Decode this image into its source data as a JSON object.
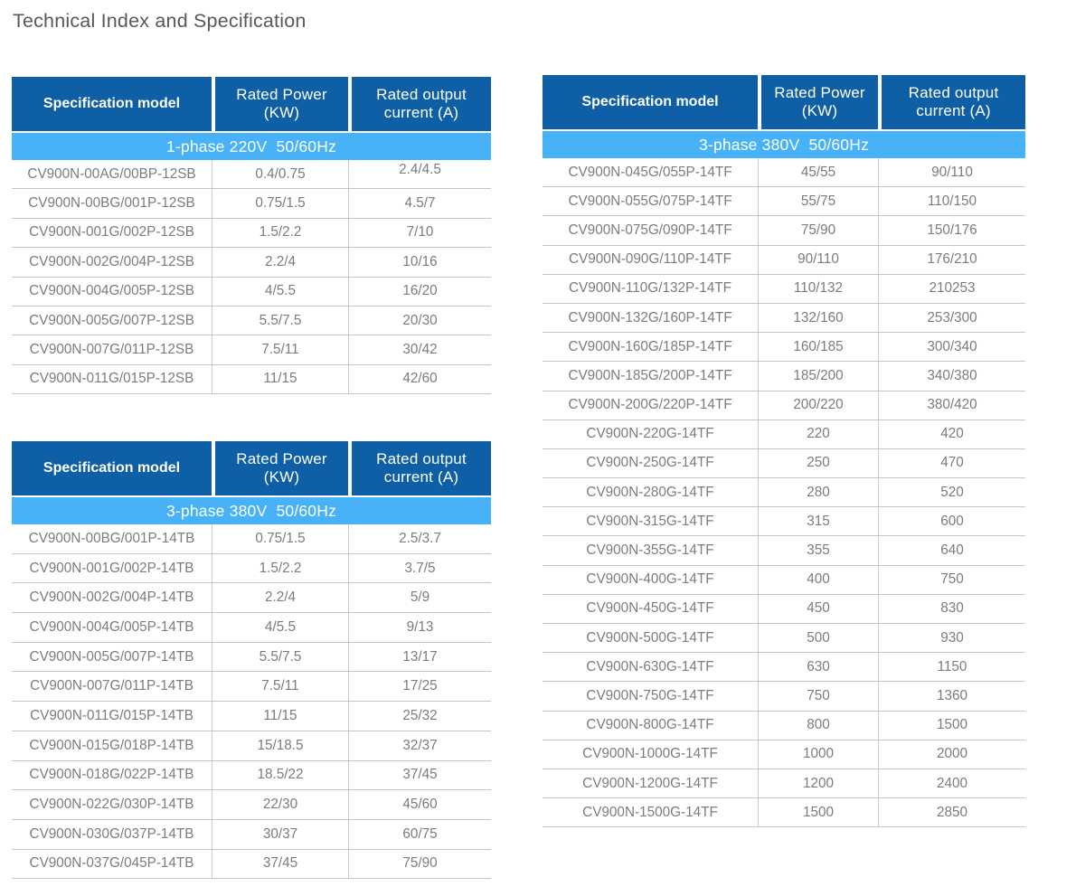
{
  "page_title": "Technical Index and Specification",
  "colors": {
    "header_bg": "#0e5fa5",
    "banner_bg": "#48b2f9",
    "header_text": "#ffffff",
    "title_text": "#58585a",
    "cell_text": "#7c7c7c",
    "row_line": "#c6c6c6",
    "column_line": "#cccccc"
  },
  "columns": [
    {
      "label": "Specification model",
      "lines": [
        "Specification model"
      ]
    },
    {
      "label": "Rated Power (KW)",
      "lines": [
        "Rated Power",
        "(KW)"
      ]
    },
    {
      "label": "Rated output current (A)",
      "lines": [
        "Rated output",
        "current (A)"
      ]
    }
  ],
  "tables": [
    {
      "banner": "1-phase 220V  50/60Hz",
      "first_current_raised": true,
      "rows": [
        [
          "CV900N-00AG/00BP-12SB",
          "0.4/0.75",
          "2.4/4.5"
        ],
        [
          "CV900N-00BG/001P-12SB",
          "0.75/1.5",
          "4.5/7"
        ],
        [
          "CV900N-001G/002P-12SB",
          "1.5/2.2",
          "7/10"
        ],
        [
          "CV900N-002G/004P-12SB",
          "2.2/4",
          "10/16"
        ],
        [
          "CV900N-004G/005P-12SB",
          "4/5.5",
          "16/20"
        ],
        [
          "CV900N-005G/007P-12SB",
          "5.5/7.5",
          "20/30"
        ],
        [
          "CV900N-007G/011P-12SB",
          "7.5/11",
          "30/42"
        ],
        [
          "CV900N-011G/015P-12SB",
          "11/15",
          "42/60"
        ]
      ]
    },
    {
      "banner": "3-phase 380V  50/60Hz",
      "first_current_raised": false,
      "rows": [
        [
          "CV900N-00BG/001P-14TB",
          "0.75/1.5",
          "2.5/3.7"
        ],
        [
          "CV900N-001G/002P-14TB",
          "1.5/2.2",
          "3.7/5"
        ],
        [
          "CV900N-002G/004P-14TB",
          "2.2/4",
          "5/9"
        ],
        [
          "CV900N-004G/005P-14TB",
          "4/5.5",
          "9/13"
        ],
        [
          "CV900N-005G/007P-14TB",
          "5.5/7.5",
          "13/17"
        ],
        [
          "CV900N-007G/011P-14TB",
          "7.5/11",
          "17/25"
        ],
        [
          "CV900N-011G/015P-14TB",
          "11/15",
          "25/32"
        ],
        [
          "CV900N-015G/018P-14TB",
          "15/18.5",
          "32/37"
        ],
        [
          "CV900N-018G/022P-14TB",
          "18.5/22",
          "37/45"
        ],
        [
          "CV900N-022G/030P-14TB",
          "22/30",
          "45/60"
        ],
        [
          "CV900N-030G/037P-14TB",
          "30/37",
          "60/75"
        ],
        [
          "CV900N-037G/045P-14TB",
          "37/45",
          "75/90"
        ]
      ]
    },
    {
      "banner": "3-phase 380V  50/60Hz",
      "first_current_raised": false,
      "rows": [
        [
          "CV900N-045G/055P-14TF",
          "45/55",
          "90/110"
        ],
        [
          "CV900N-055G/075P-14TF",
          "55/75",
          "110/150"
        ],
        [
          "CV900N-075G/090P-14TF",
          "75/90",
          "150/176"
        ],
        [
          "CV900N-090G/110P-14TF",
          "90/110",
          "176/210"
        ],
        [
          "CV900N-110G/132P-14TF",
          "110/132",
          "210253"
        ],
        [
          "CV900N-132G/160P-14TF",
          "132/160",
          "253/300"
        ],
        [
          "CV900N-160G/185P-14TF",
          "160/185",
          "300/340"
        ],
        [
          "CV900N-185G/200P-14TF",
          "185/200",
          "340/380"
        ],
        [
          "CV900N-200G/220P-14TF",
          "200/220",
          "380/420"
        ],
        [
          "CV900N-220G-14TF",
          "220",
          "420"
        ],
        [
          "CV900N-250G-14TF",
          "250",
          "470"
        ],
        [
          "CV900N-280G-14TF",
          "280",
          "520"
        ],
        [
          "CV900N-315G-14TF",
          "315",
          "600"
        ],
        [
          "CV900N-355G-14TF",
          "355",
          "640"
        ],
        [
          "CV900N-400G-14TF",
          "400",
          "750"
        ],
        [
          "CV900N-450G-14TF",
          "450",
          "830"
        ],
        [
          "CV900N-500G-14TF",
          "500",
          "930"
        ],
        [
          "CV900N-630G-14TF",
          "630",
          "1150"
        ],
        [
          "CV900N-750G-14TF",
          "750",
          "1360"
        ],
        [
          "CV900N-800G-14TF",
          "800",
          "1500"
        ],
        [
          "CV900N-1000G-14TF",
          "1000",
          "2000"
        ],
        [
          "CV900N-1200G-14TF",
          "1200",
          "2400"
        ],
        [
          "CV900N-1500G-14TF",
          "1500",
          "2850"
        ]
      ]
    }
  ]
}
